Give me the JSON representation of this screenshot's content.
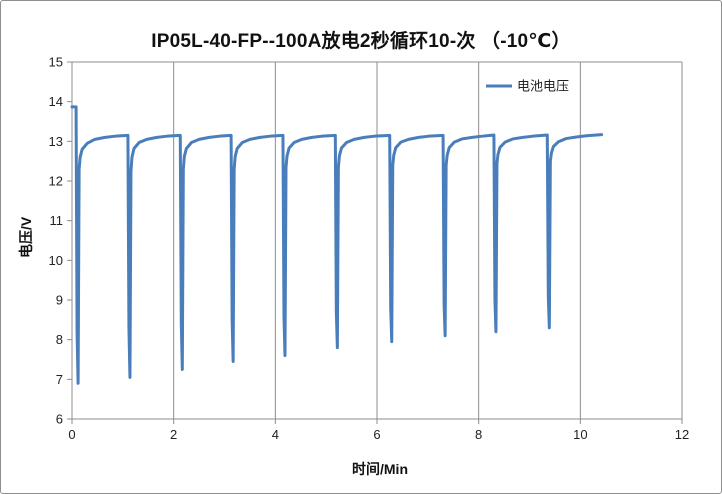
{
  "chart_data": {
    "type": "line",
    "title": "IP05L-40-FP--100A放电2秒循环10-次 （-10℃）",
    "xlabel": "时间/Min",
    "ylabel": "电压/V",
    "xlim": [
      0,
      12
    ],
    "ylim": [
      6,
      15
    ],
    "x_ticks": [
      0,
      2,
      4,
      6,
      8,
      10,
      12
    ],
    "y_ticks": [
      6,
      7,
      8,
      9,
      10,
      11,
      12,
      13,
      14,
      15
    ],
    "grid": "vertical",
    "legend_position": "top-right",
    "series": [
      {
        "name": "电池电压",
        "color": "#4a7ebb",
        "x": [
          0.0,
          0.08,
          0.1,
          0.12,
          0.14,
          0.16,
          0.2,
          0.3,
          0.45,
          0.65,
          0.85,
          1.1,
          1.12,
          1.14,
          1.16,
          1.18,
          1.22,
          1.32,
          1.47,
          1.67,
          1.87,
          2.13,
          2.15,
          2.17,
          2.19,
          2.21,
          2.25,
          2.35,
          2.5,
          2.7,
          2.9,
          3.13,
          3.15,
          3.17,
          3.19,
          3.21,
          3.25,
          3.35,
          3.5,
          3.7,
          3.9,
          4.15,
          4.17,
          4.19,
          4.21,
          4.23,
          4.27,
          4.37,
          4.52,
          4.72,
          4.92,
          5.18,
          5.2,
          5.22,
          5.24,
          5.26,
          5.3,
          5.4,
          5.55,
          5.75,
          5.95,
          6.25,
          6.27,
          6.29,
          6.31,
          6.33,
          6.37,
          6.47,
          6.62,
          6.82,
          7.02,
          7.3,
          7.32,
          7.34,
          7.36,
          7.38,
          7.42,
          7.52,
          7.67,
          7.87,
          8.07,
          8.3,
          8.32,
          8.34,
          8.36,
          8.38,
          8.42,
          8.52,
          8.67,
          8.87,
          9.07,
          9.35,
          9.37,
          9.39,
          9.41,
          9.43,
          9.47,
          9.57,
          9.72,
          9.92,
          10.12,
          10.42
        ],
        "values": [
          13.87,
          13.87,
          8.2,
          6.9,
          12.3,
          12.6,
          12.8,
          12.95,
          13.05,
          13.1,
          13.13,
          13.15,
          8.3,
          7.05,
          12.25,
          12.6,
          12.82,
          12.97,
          13.05,
          13.1,
          13.13,
          13.15,
          8.4,
          7.25,
          12.3,
          12.62,
          12.82,
          12.97,
          13.05,
          13.1,
          13.13,
          13.15,
          8.5,
          7.45,
          12.3,
          12.62,
          12.82,
          12.97,
          13.05,
          13.1,
          13.13,
          13.15,
          8.6,
          7.6,
          12.35,
          12.63,
          12.83,
          12.97,
          13.05,
          13.1,
          13.13,
          13.15,
          8.7,
          7.8,
          12.35,
          12.63,
          12.83,
          12.97,
          13.05,
          13.1,
          13.13,
          13.15,
          8.8,
          7.95,
          12.4,
          12.65,
          12.84,
          12.98,
          13.05,
          13.1,
          13.13,
          13.15,
          8.9,
          8.1,
          12.4,
          12.65,
          12.84,
          12.98,
          13.06,
          13.1,
          13.13,
          13.16,
          9.0,
          8.2,
          12.45,
          12.67,
          12.85,
          12.98,
          13.06,
          13.1,
          13.13,
          13.16,
          9.1,
          8.3,
          12.5,
          12.7,
          12.87,
          12.99,
          13.07,
          13.11,
          13.14,
          13.17
        ]
      }
    ]
  }
}
